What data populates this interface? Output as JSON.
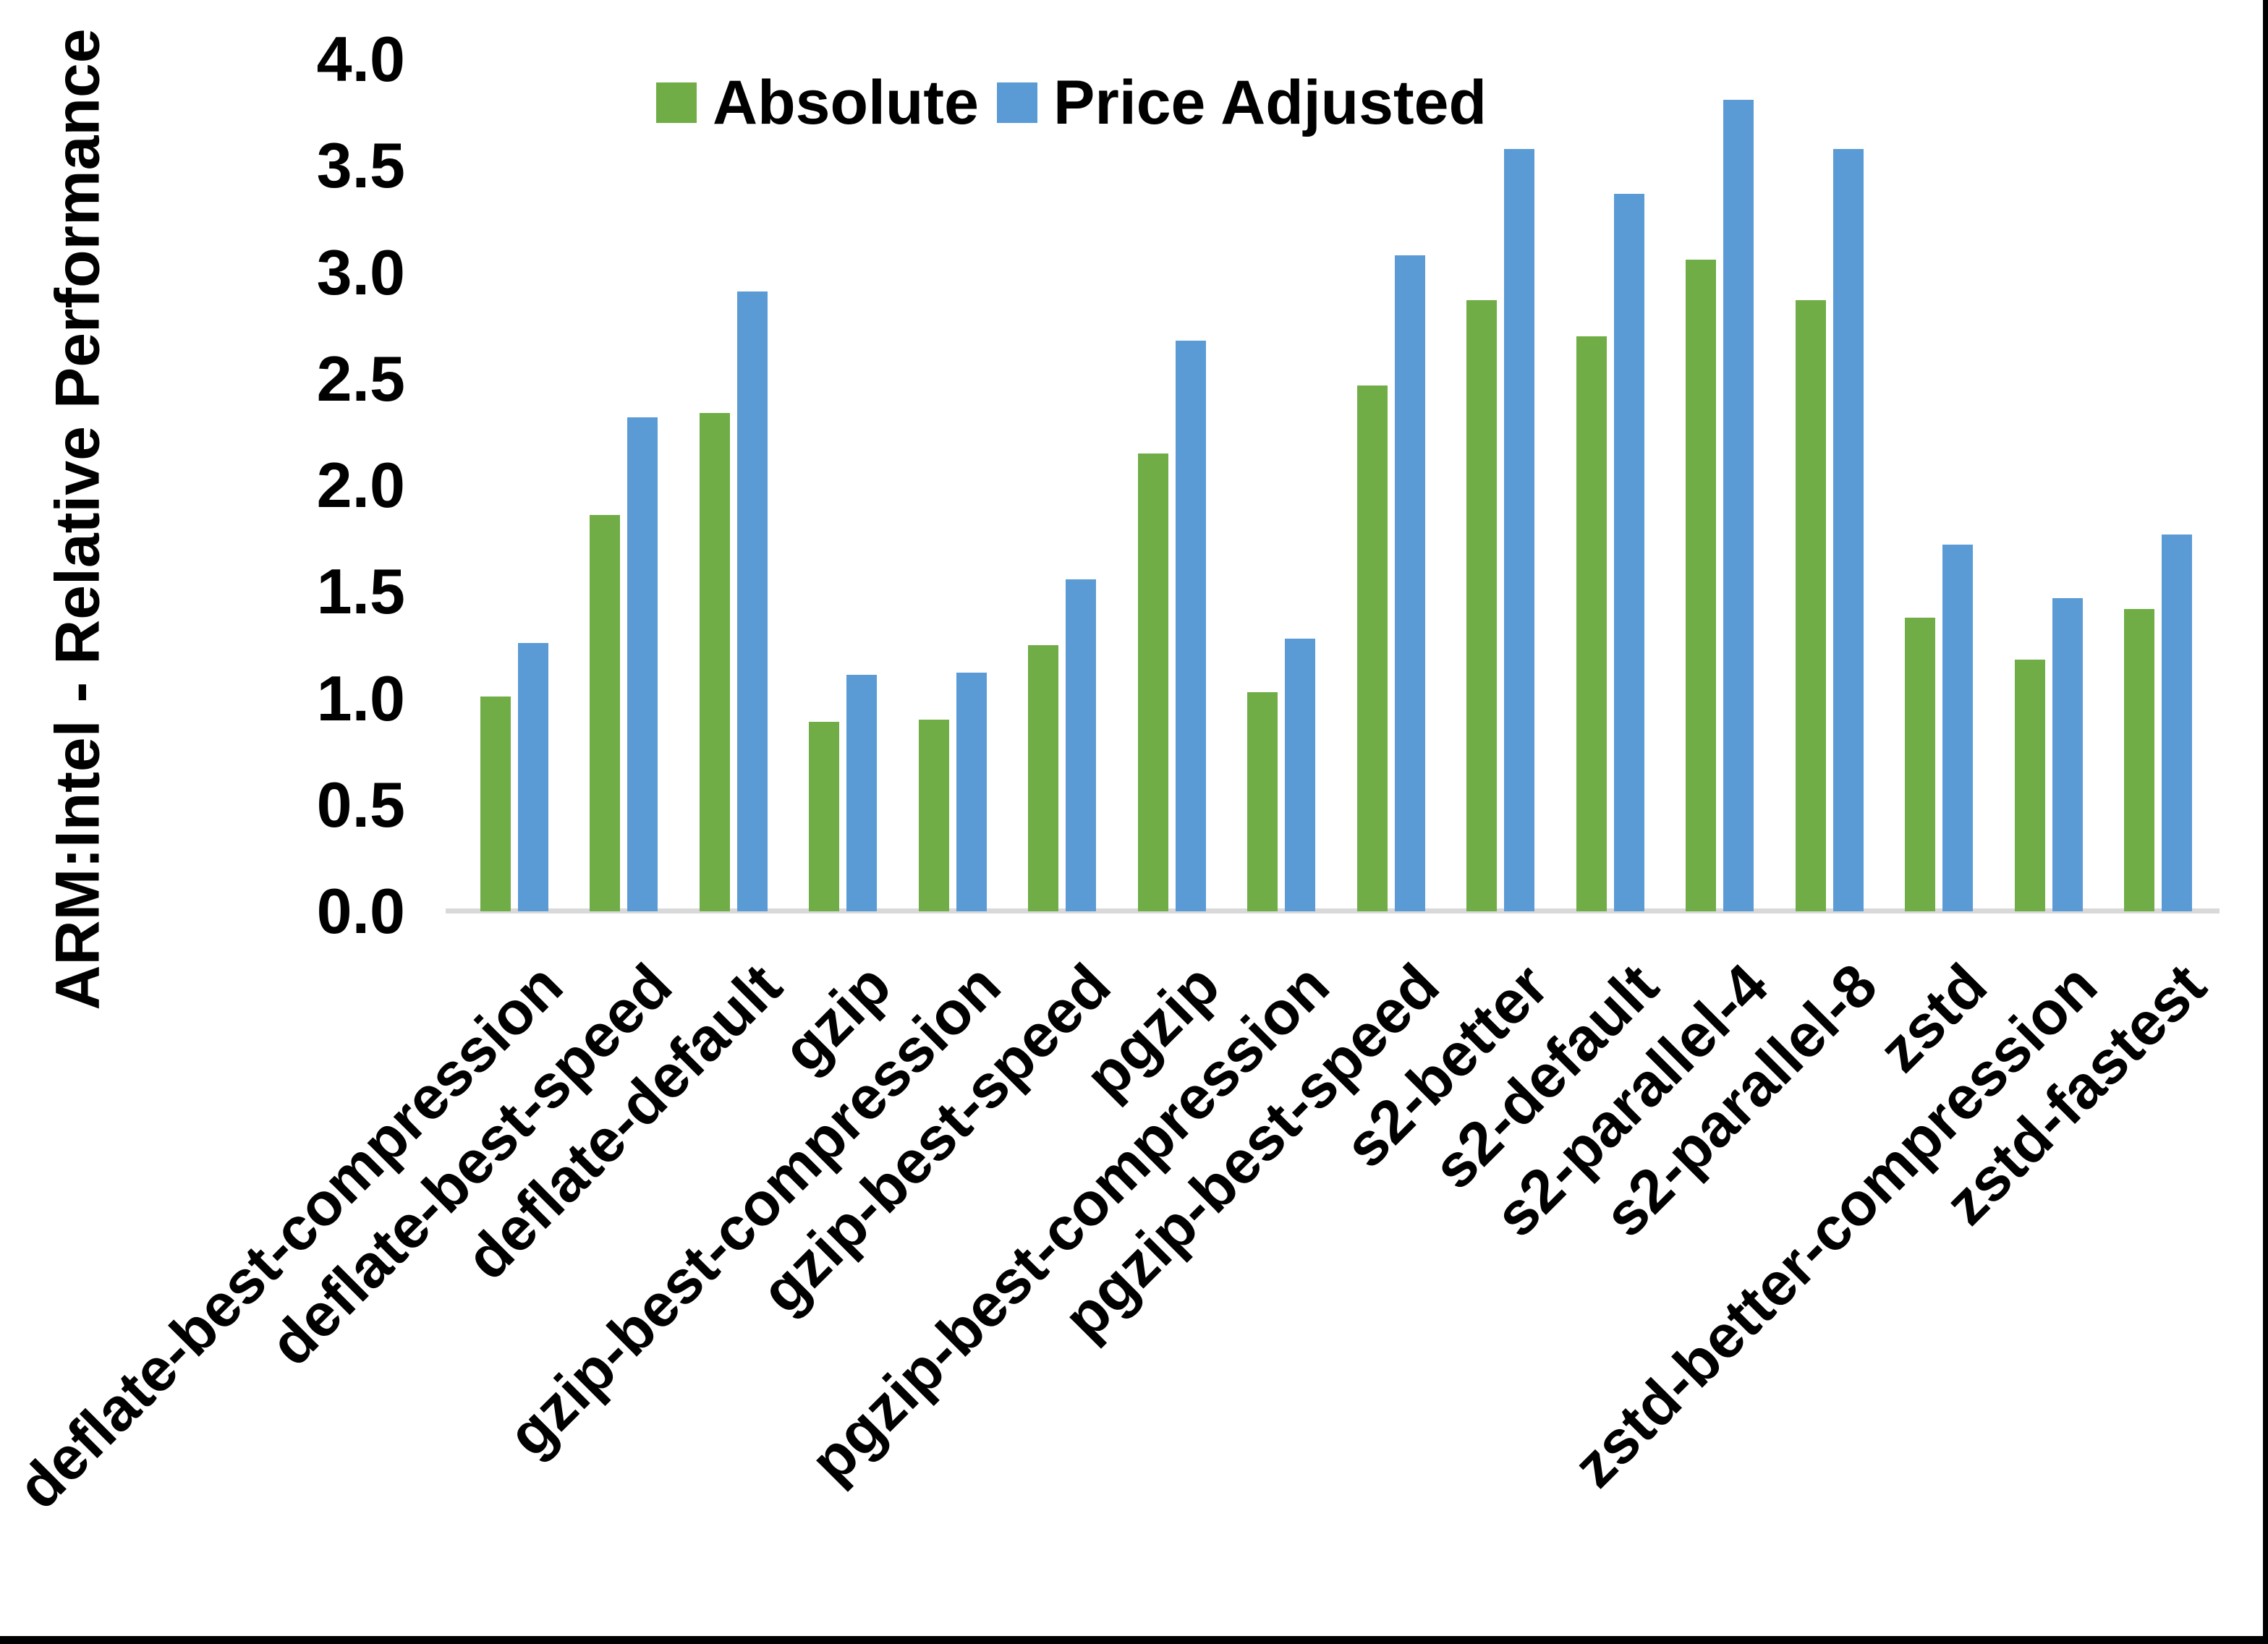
{
  "chart_data": {
    "type": "bar",
    "title": "",
    "ylabel": "ARM:Intel - Relative Performance",
    "xlabel": "",
    "categories": [
      "deflate-best-compression",
      "deflate-best-speed",
      "deflate-default",
      "gzip",
      "gzip-best-compression",
      "gzip-best-speed",
      "pgzip",
      "pgzip-best-compression",
      "pgzip-best-speed",
      "s2-better",
      "s2-default",
      "s2-parallel-4",
      "s2-parallel-8",
      "zstd",
      "zstd-better-compression",
      "zstd-fastest"
    ],
    "series": [
      {
        "name": "Absolute",
        "color": "#70AD47",
        "values": [
          1.01,
          1.86,
          2.34,
          0.89,
          0.9,
          1.25,
          2.15,
          1.03,
          2.47,
          2.87,
          2.7,
          3.06,
          2.87,
          1.38,
          1.18,
          1.42
        ]
      },
      {
        "name": "Price Adjusted",
        "color": "#5B9BD5",
        "values": [
          1.26,
          2.32,
          2.91,
          1.11,
          1.12,
          1.56,
          2.68,
          1.28,
          3.08,
          3.58,
          3.37,
          3.81,
          3.58,
          1.72,
          1.47,
          1.77
        ]
      }
    ],
    "ylim": [
      0.0,
      4.0
    ],
    "ytick_step": 0.5,
    "ytick_labels": [
      "0.0",
      "0.5",
      "1.0",
      "1.5",
      "2.0",
      "2.5",
      "3.0",
      "3.5",
      "4.0"
    ],
    "legend_position": "top-center",
    "grid": false,
    "axis_line_color": "#d9d9d9",
    "text_color": "#000000",
    "background_color": "#ffffff"
  }
}
